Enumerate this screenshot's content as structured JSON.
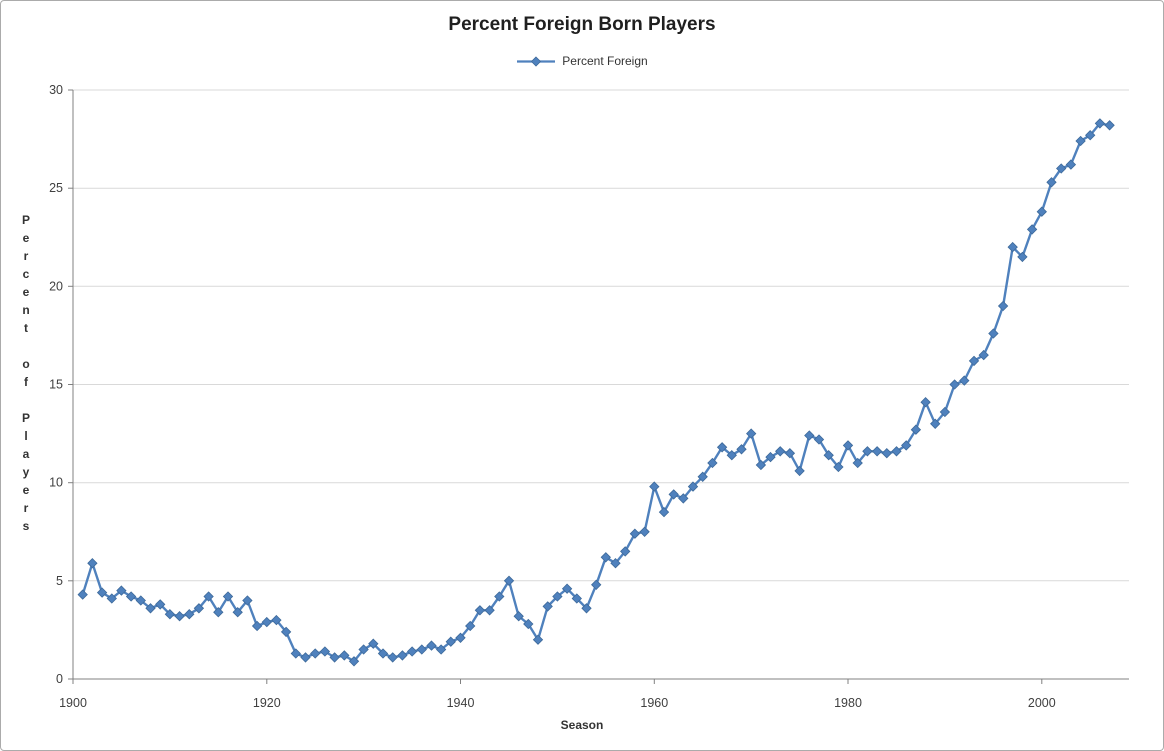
{
  "window": {
    "background": "#ffffff",
    "border_color": "#ababab"
  },
  "chart_data": {
    "type": "line",
    "title": "Percent Foreign Born Players",
    "xlabel": "Season",
    "ylabel": "Percent of Players",
    "legend": {
      "position": "top-center",
      "entries": [
        "Percent Foreign"
      ]
    },
    "grid": true,
    "axes": {
      "xlim": [
        1900,
        2009
      ],
      "ylim": [
        0,
        30
      ],
      "x_ticks": [
        1900,
        1920,
        1940,
        1960,
        1980,
        2000
      ],
      "y_ticks": [
        0,
        5,
        10,
        15,
        20,
        25,
        30
      ]
    },
    "colors": {
      "series": "#4f81bd",
      "marker_edge": "#3d6999",
      "gridline": "#d9d9d9",
      "axis": "#808080",
      "tick_label": "#404040",
      "title": "#1f1f1f"
    },
    "series": [
      {
        "name": "Percent Foreign",
        "marker": "diamond",
        "x": [
          1901,
          1902,
          1903,
          1904,
          1905,
          1906,
          1907,
          1908,
          1909,
          1910,
          1911,
          1912,
          1913,
          1914,
          1915,
          1916,
          1917,
          1918,
          1919,
          1920,
          1921,
          1922,
          1923,
          1924,
          1925,
          1926,
          1927,
          1928,
          1929,
          1930,
          1931,
          1932,
          1933,
          1934,
          1935,
          1936,
          1937,
          1938,
          1939,
          1940,
          1941,
          1942,
          1943,
          1944,
          1945,
          1946,
          1947,
          1948,
          1949,
          1950,
          1951,
          1952,
          1953,
          1954,
          1955,
          1956,
          1957,
          1958,
          1959,
          1960,
          1961,
          1962,
          1963,
          1964,
          1965,
          1966,
          1967,
          1968,
          1969,
          1970,
          1971,
          1972,
          1973,
          1974,
          1975,
          1976,
          1977,
          1978,
          1979,
          1980,
          1981,
          1982,
          1983,
          1984,
          1985,
          1986,
          1987,
          1988,
          1989,
          1990,
          1991,
          1992,
          1993,
          1994,
          1995,
          1996,
          1997,
          1998,
          1999,
          2000,
          2001,
          2002,
          2003,
          2004,
          2005,
          2006,
          2007
        ],
        "values": [
          4.3,
          5.9,
          4.4,
          4.1,
          4.5,
          4.2,
          4.0,
          3.6,
          3.8,
          3.3,
          3.2,
          3.3,
          3.6,
          4.2,
          3.4,
          4.2,
          3.4,
          4.0,
          2.7,
          2.9,
          3.0,
          2.4,
          1.3,
          1.1,
          1.3,
          1.4,
          1.1,
          1.2,
          0.9,
          1.5,
          1.8,
          1.3,
          1.1,
          1.2,
          1.4,
          1.5,
          1.7,
          1.5,
          1.9,
          2.1,
          2.7,
          3.5,
          3.5,
          4.2,
          5.0,
          3.2,
          2.8,
          2.0,
          3.7,
          4.2,
          4.6,
          4.1,
          3.6,
          4.8,
          6.2,
          5.9,
          6.5,
          7.4,
          7.5,
          9.8,
          8.5,
          9.4,
          9.2,
          9.8,
          10.3,
          11.0,
          11.8,
          11.4,
          11.7,
          12.5,
          10.9,
          11.3,
          11.6,
          11.5,
          10.6,
          12.4,
          12.2,
          11.4,
          10.8,
          11.9,
          11.0,
          11.6,
          11.6,
          11.5,
          11.6,
          11.9,
          12.7,
          14.1,
          13.0,
          13.6,
          15.0,
          15.2,
          16.2,
          16.5,
          17.6,
          19.0,
          22.0,
          21.5,
          22.9,
          23.8,
          25.3,
          26.0,
          26.2,
          27.4,
          27.7,
          28.3,
          28.2
        ]
      }
    ]
  }
}
